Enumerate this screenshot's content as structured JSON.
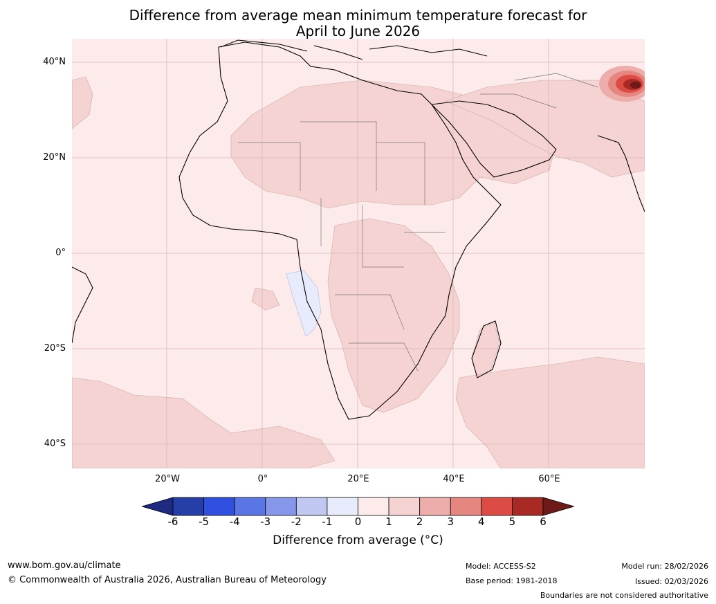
{
  "title": {
    "line1": "Difference from average mean minimum temperature forecast for",
    "line2": "April to June 2026"
  },
  "map": {
    "lat_labels": [
      "40°N",
      "20°N",
      "0°",
      "20°S",
      "40°S"
    ],
    "lon_labels": [
      "20°W",
      "0°",
      "20°E",
      "40°E",
      "60°E"
    ],
    "region": "Africa and Middle East"
  },
  "colorbar": {
    "ticks": [
      "-6",
      "-5",
      "-4",
      "-3",
      "-2",
      "-1",
      "0",
      "1",
      "2",
      "3",
      "4",
      "5",
      "6"
    ],
    "colors": [
      "#1d2a80",
      "#263fa8",
      "#2f50e0",
      "#5a75e4",
      "#8696ea",
      "#c0c8f2",
      "#e8ebfb",
      "#fcebea",
      "#f5d3d2",
      "#edaeab",
      "#e58680",
      "#dc4c44",
      "#a92a24",
      "#6e1a18"
    ],
    "label": "Difference from average (°C)"
  },
  "footer": {
    "website": "www.bom.gov.au/climate",
    "copyright": "© Commonwealth of Australia 2026, Australian Bureau of Meteorology",
    "model": "Model: ACCESS-S2",
    "base_period": "Base period: 1981-2018",
    "model_run": "Model run: 28/02/2026",
    "issued": "Issued: 02/03/2026",
    "disclaimer": "Boundaries are not considered authoritative"
  }
}
